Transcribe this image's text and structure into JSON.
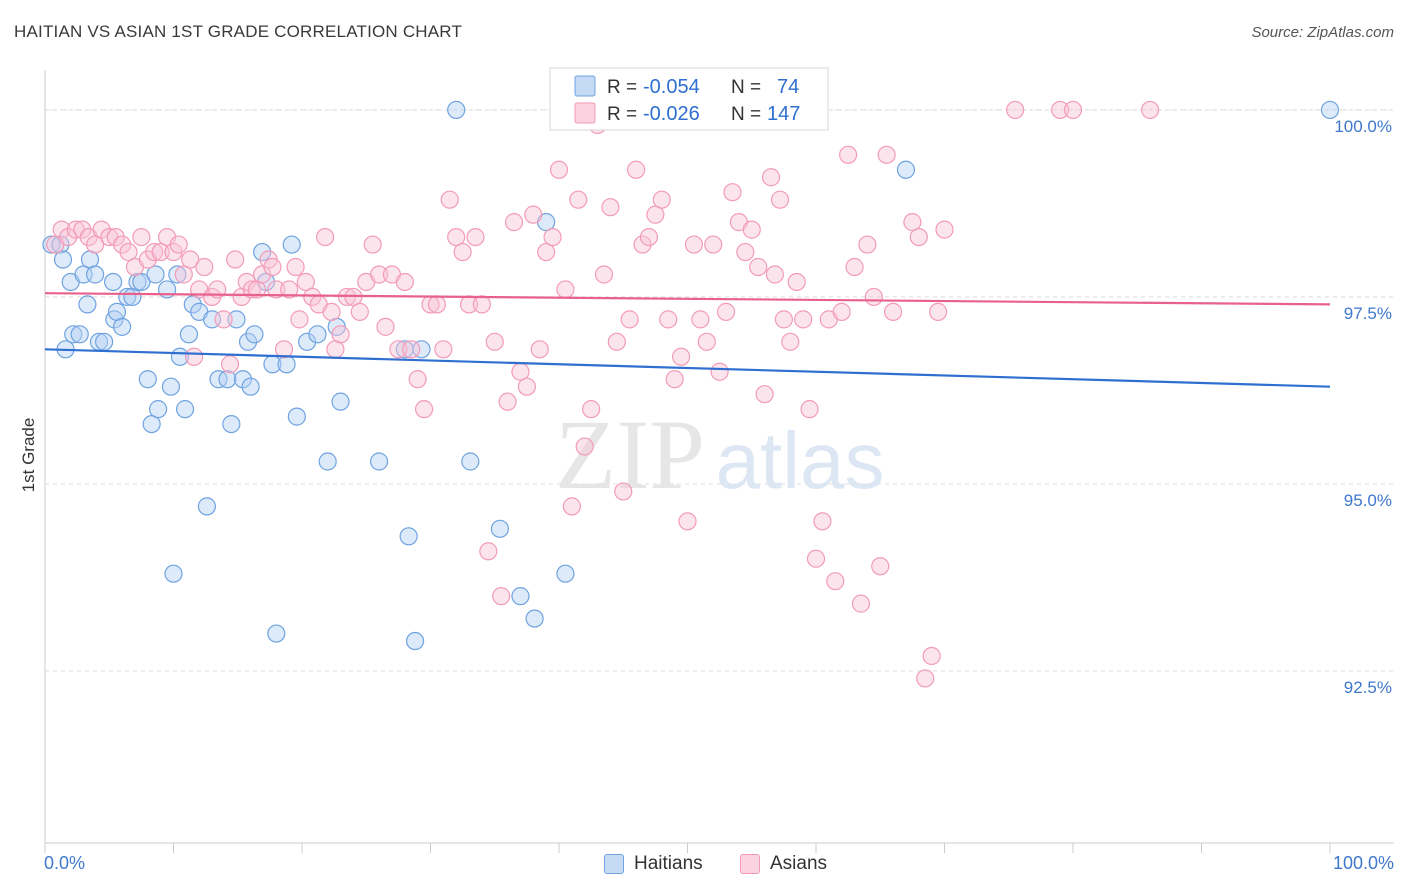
{
  "title": "HAITIAN VS ASIAN 1ST GRADE CORRELATION CHART",
  "source": "Source: ZipAtlas.com",
  "watermark": {
    "zip": "ZIP",
    "atlas": "atlas"
  },
  "legend": [
    {
      "r_label": "R =",
      "r_value": "-0.054",
      "n_label": "N =",
      "n_value": "74",
      "color": "#6fa3e0"
    },
    {
      "r_label": "R =",
      "r_value": "-0.026",
      "n_label": "N =",
      "n_value": "147",
      "color": "#f29bb8"
    }
  ],
  "chart_data": {
    "type": "scatter",
    "title": "HAITIAN VS ASIAN 1ST GRADE CORRELATION CHART",
    "xlabel": "",
    "ylabel": "1st Grade",
    "xlim": [
      0,
      100
    ],
    "ylim": [
      90.2,
      100.4
    ],
    "x_tick_labels": [
      "0.0%",
      "100.0%"
    ],
    "y_ticks": [
      92.5,
      95.0,
      97.5,
      100.0
    ],
    "y_tick_labels": [
      "92.5%",
      "95.0%",
      "97.5%",
      "100.0%"
    ],
    "grid": true,
    "legend_position": "bottom",
    "series": [
      {
        "name": "Haitians",
        "color": "#6fa3e0",
        "line_color": "#2e6fd0",
        "trend": [
          [
            0,
            96.8
          ],
          [
            100,
            96.3
          ]
        ],
        "points": [
          [
            0.5,
            98.2
          ],
          [
            1.2,
            98.2
          ],
          [
            1.4,
            98.0
          ],
          [
            1.6,
            96.8
          ],
          [
            2.0,
            97.7
          ],
          [
            2.2,
            97.0
          ],
          [
            2.7,
            97.0
          ],
          [
            3.0,
            97.8
          ],
          [
            3.3,
            97.4
          ],
          [
            3.5,
            98.0
          ],
          [
            3.9,
            97.8
          ],
          [
            4.2,
            96.9
          ],
          [
            4.6,
            96.9
          ],
          [
            5.3,
            97.7
          ],
          [
            5.4,
            97.2
          ],
          [
            5.6,
            97.3
          ],
          [
            6.0,
            97.1
          ],
          [
            6.4,
            97.5
          ],
          [
            6.8,
            97.5
          ],
          [
            7.2,
            97.7
          ],
          [
            7.5,
            97.7
          ],
          [
            8.0,
            96.4
          ],
          [
            8.3,
            95.8
          ],
          [
            8.6,
            97.8
          ],
          [
            8.8,
            96.0
          ],
          [
            9.5,
            97.6
          ],
          [
            9.8,
            96.3
          ],
          [
            10.0,
            93.8
          ],
          [
            10.3,
            97.8
          ],
          [
            10.5,
            96.7
          ],
          [
            10.9,
            96.0
          ],
          [
            11.2,
            97.0
          ],
          [
            11.5,
            97.4
          ],
          [
            12.0,
            97.3
          ],
          [
            12.6,
            94.7
          ],
          [
            13.0,
            97.2
          ],
          [
            13.5,
            96.4
          ],
          [
            14.2,
            96.4
          ],
          [
            14.5,
            95.8
          ],
          [
            14.9,
            97.2
          ],
          [
            15.4,
            96.4
          ],
          [
            15.8,
            96.9
          ],
          [
            16.0,
            96.3
          ],
          [
            16.3,
            97.0
          ],
          [
            16.9,
            98.1
          ],
          [
            17.2,
            97.7
          ],
          [
            17.7,
            96.6
          ],
          [
            18.0,
            93.0
          ],
          [
            18.8,
            96.6
          ],
          [
            19.2,
            98.2
          ],
          [
            19.6,
            95.9
          ],
          [
            20.4,
            96.9
          ],
          [
            21.2,
            97.0
          ],
          [
            22.0,
            95.3
          ],
          [
            22.7,
            97.1
          ],
          [
            23.0,
            96.1
          ],
          [
            26.0,
            95.3
          ],
          [
            28.0,
            96.8
          ],
          [
            28.3,
            94.3
          ],
          [
            28.8,
            92.9
          ],
          [
            29.3,
            96.8
          ],
          [
            32.0,
            100.0
          ],
          [
            33.1,
            95.3
          ],
          [
            35.4,
            94.4
          ],
          [
            37.0,
            93.5
          ],
          [
            38.1,
            93.2
          ],
          [
            39.0,
            98.5
          ],
          [
            40.5,
            93.8
          ],
          [
            67.0,
            99.2
          ],
          [
            100.0,
            100.0
          ]
        ]
      },
      {
        "name": "Asians",
        "color": "#f29bb8",
        "line_color": "#e8608c",
        "trend": [
          [
            0,
            97.55
          ],
          [
            100,
            97.4
          ]
        ],
        "points": [
          [
            0.8,
            98.2
          ],
          [
            1.3,
            98.4
          ],
          [
            1.8,
            98.3
          ],
          [
            2.4,
            98.4
          ],
          [
            2.9,
            98.4
          ],
          [
            3.4,
            98.3
          ],
          [
            3.9,
            98.2
          ],
          [
            4.4,
            98.4
          ],
          [
            5.0,
            98.3
          ],
          [
            5.5,
            98.3
          ],
          [
            6.0,
            98.2
          ],
          [
            6.5,
            98.1
          ],
          [
            7.0,
            97.9
          ],
          [
            7.5,
            98.3
          ],
          [
            8.0,
            98.0
          ],
          [
            8.5,
            98.1
          ],
          [
            9.0,
            98.1
          ],
          [
            9.5,
            98.3
          ],
          [
            10.0,
            98.1
          ],
          [
            10.4,
            98.2
          ],
          [
            10.8,
            97.8
          ],
          [
            11.3,
            98.0
          ],
          [
            11.6,
            96.7
          ],
          [
            12.0,
            97.6
          ],
          [
            12.4,
            97.9
          ],
          [
            13.0,
            97.5
          ],
          [
            13.4,
            97.6
          ],
          [
            13.9,
            97.2
          ],
          [
            14.4,
            96.6
          ],
          [
            14.8,
            98.0
          ],
          [
            15.3,
            97.5
          ],
          [
            15.7,
            97.7
          ],
          [
            16.1,
            97.6
          ],
          [
            16.5,
            97.6
          ],
          [
            16.9,
            97.8
          ],
          [
            17.4,
            98.0
          ],
          [
            17.7,
            97.9
          ],
          [
            18.0,
            97.6
          ],
          [
            18.6,
            96.8
          ],
          [
            19.0,
            97.6
          ],
          [
            19.5,
            97.9
          ],
          [
            19.8,
            97.2
          ],
          [
            20.3,
            97.7
          ],
          [
            20.8,
            97.5
          ],
          [
            21.3,
            97.4
          ],
          [
            21.8,
            98.3
          ],
          [
            22.3,
            97.3
          ],
          [
            22.6,
            96.8
          ],
          [
            23.0,
            97.0
          ],
          [
            23.5,
            97.5
          ],
          [
            24.0,
            97.5
          ],
          [
            24.5,
            97.3
          ],
          [
            25.0,
            97.7
          ],
          [
            25.5,
            98.2
          ],
          [
            26.0,
            97.8
          ],
          [
            26.5,
            97.1
          ],
          [
            27.0,
            97.8
          ],
          [
            27.5,
            96.8
          ],
          [
            28.0,
            97.7
          ],
          [
            28.5,
            96.8
          ],
          [
            29.0,
            96.4
          ],
          [
            29.5,
            96.0
          ],
          [
            30.0,
            97.4
          ],
          [
            30.5,
            97.4
          ],
          [
            31.0,
            96.8
          ],
          [
            31.5,
            98.8
          ],
          [
            32.0,
            98.3
          ],
          [
            32.5,
            98.1
          ],
          [
            33.0,
            97.4
          ],
          [
            33.5,
            98.3
          ],
          [
            34.0,
            97.4
          ],
          [
            34.5,
            94.1
          ],
          [
            35.0,
            96.9
          ],
          [
            35.5,
            93.5
          ],
          [
            36.0,
            96.1
          ],
          [
            36.5,
            98.5
          ],
          [
            37.0,
            96.5
          ],
          [
            37.5,
            96.3
          ],
          [
            38.0,
            98.6
          ],
          [
            38.5,
            96.8
          ],
          [
            39.0,
            98.1
          ],
          [
            39.5,
            98.3
          ],
          [
            40.0,
            99.2
          ],
          [
            40.5,
            97.6
          ],
          [
            41.0,
            94.7
          ],
          [
            41.5,
            98.8
          ],
          [
            42.0,
            95.5
          ],
          [
            42.5,
            96.0
          ],
          [
            43.0,
            99.8
          ],
          [
            43.5,
            97.8
          ],
          [
            44.0,
            98.7
          ],
          [
            44.5,
            96.9
          ],
          [
            45.0,
            94.9
          ],
          [
            45.5,
            97.2
          ],
          [
            46.0,
            99.2
          ],
          [
            46.5,
            98.2
          ],
          [
            47.0,
            98.3
          ],
          [
            47.5,
            98.6
          ],
          [
            48.0,
            98.8
          ],
          [
            48.5,
            97.2
          ],
          [
            49.0,
            96.4
          ],
          [
            49.5,
            96.7
          ],
          [
            50.0,
            94.5
          ],
          [
            50.5,
            98.2
          ],
          [
            51.0,
            97.2
          ],
          [
            51.5,
            96.9
          ],
          [
            52.0,
            98.2
          ],
          [
            52.5,
            96.5
          ],
          [
            53.0,
            97.3
          ],
          [
            53.5,
            98.9
          ],
          [
            54.0,
            98.5
          ],
          [
            54.5,
            98.1
          ],
          [
            55.0,
            98.4
          ],
          [
            55.5,
            97.9
          ],
          [
            56.0,
            96.2
          ],
          [
            56.5,
            99.1
          ],
          [
            56.8,
            97.8
          ],
          [
            57.2,
            98.8
          ],
          [
            57.5,
            97.2
          ],
          [
            58.0,
            96.9
          ],
          [
            58.5,
            97.7
          ],
          [
            59.0,
            97.2
          ],
          [
            59.5,
            96.0
          ],
          [
            60.0,
            94.0
          ],
          [
            60.5,
            94.5
          ],
          [
            61.0,
            97.2
          ],
          [
            61.5,
            93.7
          ],
          [
            62.0,
            97.3
          ],
          [
            62.5,
            99.4
          ],
          [
            63.0,
            97.9
          ],
          [
            63.5,
            93.4
          ],
          [
            64.0,
            98.2
          ],
          [
            64.5,
            97.5
          ],
          [
            65.0,
            93.9
          ],
          [
            65.5,
            99.4
          ],
          [
            66.0,
            97.3
          ],
          [
            67.5,
            98.5
          ],
          [
            68.0,
            98.3
          ],
          [
            68.5,
            92.4
          ],
          [
            69.0,
            92.7
          ],
          [
            69.5,
            97.3
          ],
          [
            70.0,
            98.4
          ],
          [
            75.5,
            100.0
          ],
          [
            79.0,
            100.0
          ],
          [
            80.0,
            100.0
          ],
          [
            86.0,
            100.0
          ]
        ]
      }
    ]
  }
}
